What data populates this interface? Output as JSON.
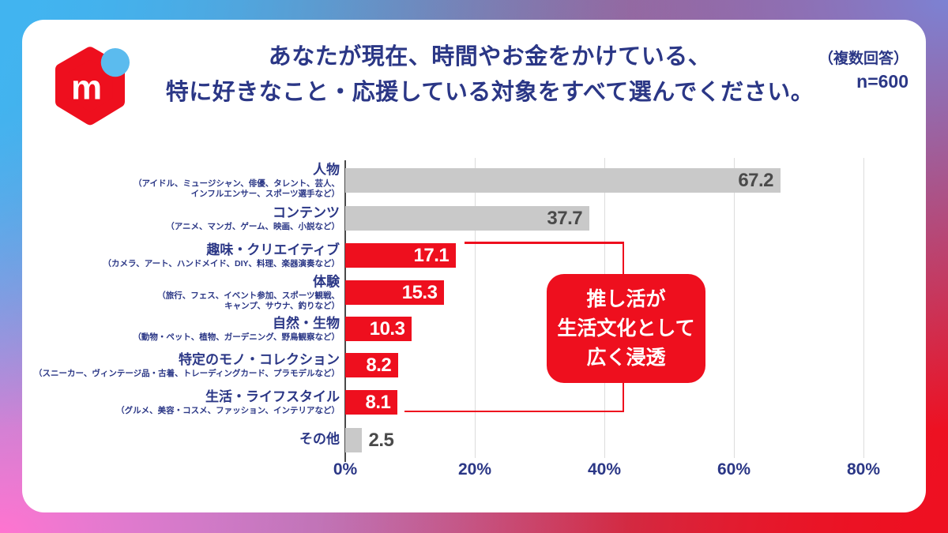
{
  "header": {
    "title_line1": "あなたが現在、時間やお金をかけている、",
    "title_line2": "特に好きなこと・応援している対象をすべて選んでください。",
    "note_line1": "（複数回答）",
    "note_line2": "n=600",
    "logo_letter": "m"
  },
  "chart_data": {
    "type": "bar",
    "orientation": "horizontal",
    "value_unit": "%",
    "xlim": [
      0,
      80
    ],
    "x_ticks": [
      "0%",
      "20%",
      "40%",
      "60%",
      "80%"
    ],
    "grid": true,
    "categories": [
      {
        "label": "人物",
        "sublabel": "（アイドル、ミュージシャン、俳優、タレント、芸人、\nインフルエンサー、スポーツ選手など）",
        "value": 67.2,
        "color": "gray",
        "value_label_inside": true
      },
      {
        "label": "コンテンツ",
        "sublabel": "（アニメ、マンガ、ゲーム、映画、小説など）",
        "value": 37.7,
        "color": "gray",
        "value_label_inside": true
      },
      {
        "label": "趣味・クリエイティブ",
        "sublabel": "（カメラ、アート、ハンドメイド、DIY、料理、楽器演奏など）",
        "value": 17.1,
        "color": "red",
        "value_label_inside": true
      },
      {
        "label": "体験",
        "sublabel": "（旅行、フェス、イベント参加、スポーツ観戦、\nキャンプ、サウナ、釣りなど）",
        "value": 15.3,
        "color": "red",
        "value_label_inside": true
      },
      {
        "label": "自然・生物",
        "sublabel": "（動物・ペット、植物、ガーデニング、野鳥観察など）",
        "value": 10.3,
        "color": "red",
        "value_label_inside": true
      },
      {
        "label": "特定のモノ・コレクション",
        "sublabel": "（スニーカー、ヴィンテージ品・古着、トレーディングカード、プラモデルなど）",
        "value": 8.2,
        "color": "red",
        "value_label_inside": true
      },
      {
        "label": "生活・ライフスタイル",
        "sublabel": "（グルメ、美容・コスメ、ファッション、インテリアなど）",
        "value": 8.1,
        "color": "red",
        "value_label_inside": true
      },
      {
        "label": "その他",
        "sublabel": "",
        "value": 2.5,
        "color": "gray",
        "value_label_inside": false
      }
    ],
    "annotation": {
      "text": "推し活が\n生活文化として\n広く浸透"
    },
    "legend": null
  },
  "colors": {
    "navy": "#2b3786",
    "red": "#ee0f1e",
    "bar_gray": "#c9c9c9",
    "value_gray": "#4a4a4a",
    "gridline": "#dcdcdc",
    "axis": "#4a4a4a",
    "logo_blue": "#5bbbee",
    "bg_top_left": "#41b4f0",
    "bg_top_right": "#7c82d3",
    "bg_bottom_left": "#ff74d0",
    "bg_bottom_right": "#ee1021"
  }
}
